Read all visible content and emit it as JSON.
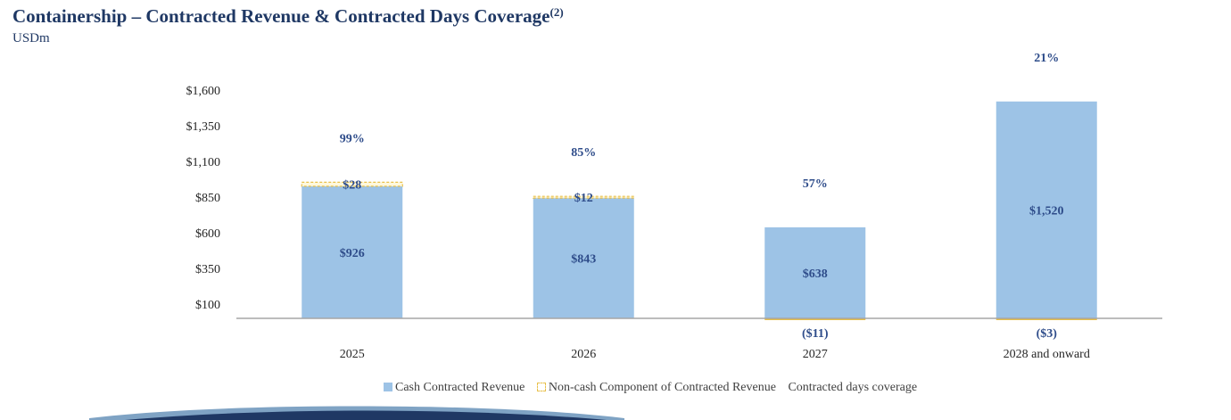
{
  "header": {
    "title": "Containership – Contracted Revenue & Contracted Days Coverage",
    "title_superscript": "(2)",
    "subtitle": "USDm"
  },
  "chart_data": {
    "type": "bar",
    "stacked": true,
    "categories": [
      "2025",
      "2026",
      "2027",
      "2028 and onward"
    ],
    "series": [
      {
        "name": "Cash Contracted Revenue",
        "values": [
          926,
          843,
          638,
          1520
        ],
        "labels": [
          "$926",
          "$843",
          "$638",
          "$1,520"
        ],
        "color": "#9dc3e6"
      },
      {
        "name": "Non-cash Component of Contracted Revenue",
        "values": [
          28,
          12,
          -11,
          -3
        ],
        "labels": [
          "$28",
          "$12",
          "($11)",
          "($3)"
        ],
        "color": "#e8c04a"
      },
      {
        "name": "Contracted days coverage",
        "values": [
          99,
          85,
          57,
          21
        ],
        "labels": [
          "99%",
          "85%",
          "57%",
          "21%"
        ],
        "unit": "%"
      }
    ],
    "yticks": [
      "$100",
      "$350",
      "$600",
      "$850",
      "$1,100",
      "$1,350",
      "$1,600"
    ],
    "ytick_values": [
      100,
      350,
      600,
      850,
      1100,
      1350,
      1600
    ],
    "ylim": [
      -100,
      1600
    ],
    "grid": false,
    "legend_position": "bottom"
  },
  "colors": {
    "cash": "#9dc3e6",
    "noncash": "#e8c04a",
    "label_text": "#2e4c8a",
    "title": "#1f3864"
  }
}
